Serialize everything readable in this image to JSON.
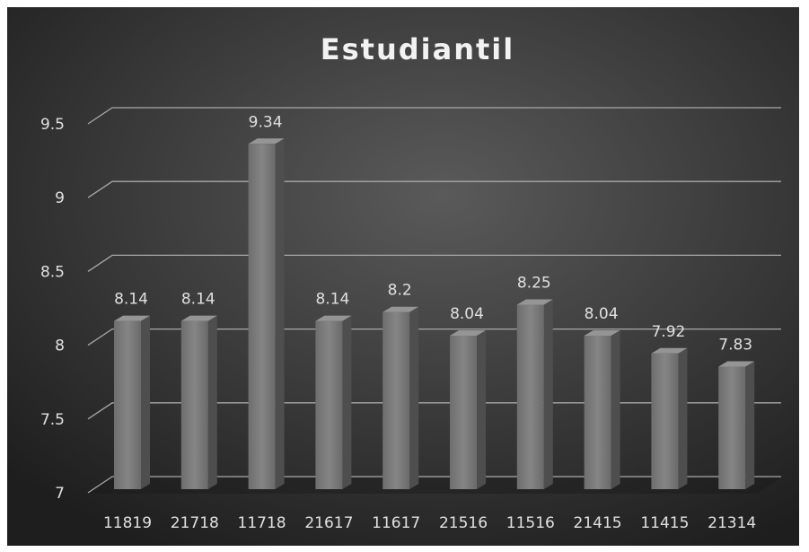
{
  "chart_data": {
    "type": "bar3d",
    "title": "Estudiantil",
    "categories": [
      "11819",
      "21718",
      "11718",
      "21617",
      "11617",
      "21516",
      "11516",
      "21415",
      "11415",
      "21314"
    ],
    "values": [
      8.14,
      8.14,
      9.34,
      8.14,
      8.2,
      8.04,
      8.25,
      8.04,
      7.92,
      7.83
    ],
    "color": "#7b7b7b",
    "ylim": [
      7,
      9.5
    ],
    "yticks": [
      7,
      7.5,
      8,
      8.5,
      9,
      9.5
    ],
    "grid": true
  }
}
